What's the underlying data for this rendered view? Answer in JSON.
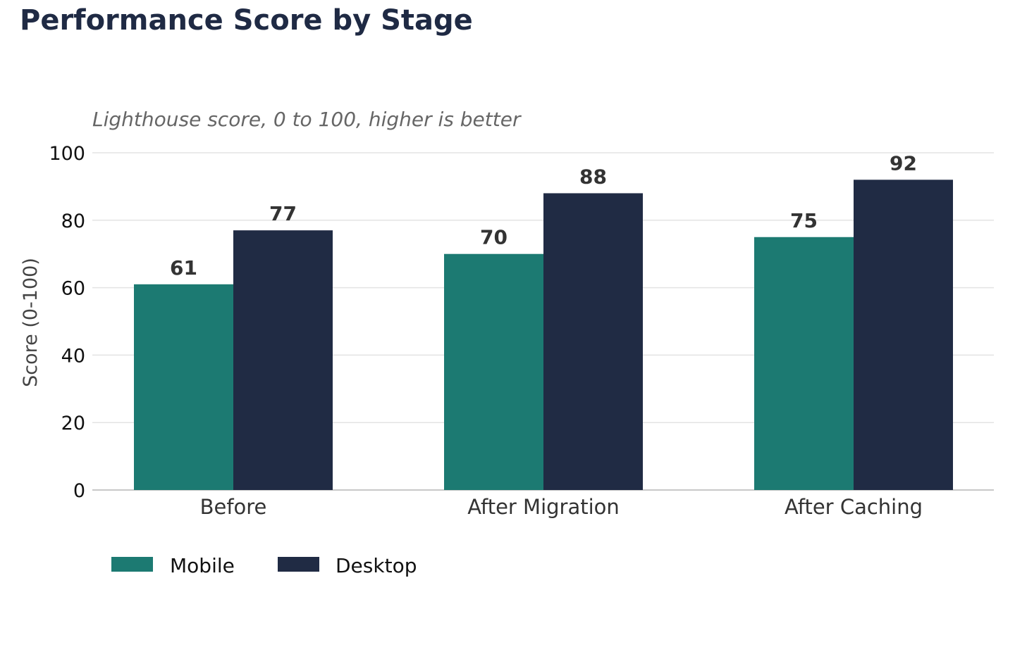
{
  "chart_data": {
    "type": "bar",
    "title": "Performance Score by Stage",
    "subtitle": "Lighthouse score, 0 to 100, higher is better",
    "xlabel": "",
    "ylabel": "Score (0-100)",
    "ylim": [
      0,
      100
    ],
    "yticks": [
      0,
      20,
      40,
      60,
      80,
      100
    ],
    "grid": true,
    "legend_position": "bottom-left",
    "categories": [
      "Before",
      "After Migration",
      "After Caching"
    ],
    "series": [
      {
        "name": "Mobile",
        "color": "#1c7a72",
        "values": [
          61,
          70,
          75
        ]
      },
      {
        "name": "Desktop",
        "color": "#202b44",
        "values": [
          77,
          88,
          92
        ]
      }
    ]
  }
}
